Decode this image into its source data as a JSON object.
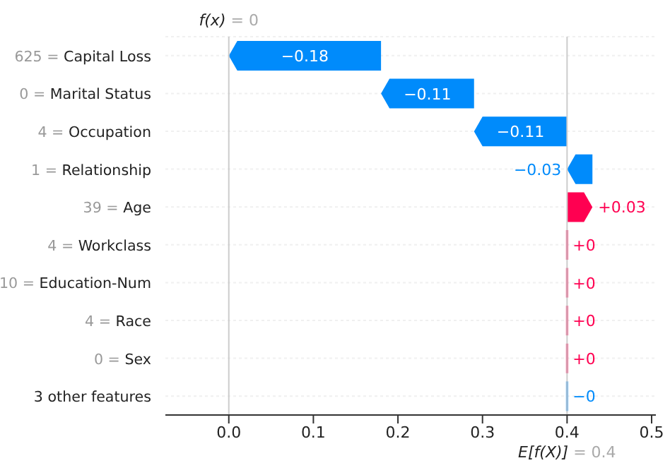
{
  "chart_data": {
    "type": "bar",
    "orientation": "horizontal",
    "categories": [
      "625 = Capital Loss",
      "0 = Marital Status",
      "4 = Occupation",
      "1 = Relationship",
      "39 = Age",
      "4 = Workclass",
      "10 = Education-Num",
      "4 = Race",
      "0 = Sex",
      "3 other features"
    ],
    "values": [
      -0.18,
      -0.11,
      -0.11,
      -0.03,
      0.03,
      0,
      0,
      0,
      0,
      0
    ],
    "base": [
      0.18,
      0.29,
      0.4,
      0.43,
      0.4,
      0.4,
      0.4,
      0.4,
      0.4,
      0.4
    ],
    "colors": [
      "#008bfb",
      "#008bfb",
      "#008bfb",
      "#008bfb",
      "#ff0051",
      "#ff0051",
      "#ff0051",
      "#ff0051",
      "#ff0051",
      "#008bfb"
    ],
    "value_labels": [
      "−0.18",
      "−0.11",
      "−0.11",
      "−0.03",
      "+0.03",
      "+0",
      "+0",
      "+0",
      "+0",
      "−0"
    ],
    "xlim": [
      -0.075,
      0.505
    ],
    "xticks": [
      {
        "value": 0,
        "label": "0.0"
      },
      {
        "value": 0.1,
        "label": "0.1"
      },
      {
        "value": 0.2,
        "label": "0.2"
      },
      {
        "value": 0.3,
        "label": "0.3"
      },
      {
        "value": 0.4,
        "label": "0.4"
      },
      {
        "value": 0.5,
        "label": "0.5"
      }
    ],
    "grid": "y",
    "ref_lines": [
      {
        "axis": "x",
        "value": 0,
        "label": "f(x) = 0",
        "color": "#cccccc"
      },
      {
        "axis": "x",
        "value": 0.4,
        "label": "E[f(X)] = 0.4",
        "color": "#cccccc"
      }
    ]
  }
}
